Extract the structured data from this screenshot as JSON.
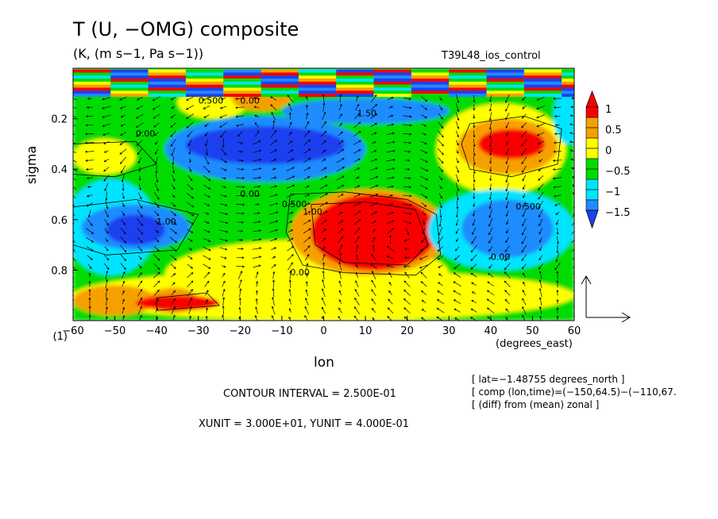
{
  "chart_data": {
    "type": "heatmap",
    "title": "T (U, −OMG) composite",
    "subtitle": "(K, (m s−1, Pa s−1))",
    "run_label": "T39L48_ios_control",
    "xlabel": "lon",
    "xunits": "(degrees_east)",
    "ylabel": "sigma",
    "x_ticks": [
      "−60",
      "−50",
      "−40",
      "−30",
      "−20",
      "−10",
      "0",
      "10",
      "20",
      "30",
      "40",
      "50",
      "60"
    ],
    "y_ticks": [
      "0.2",
      "0.4",
      "0.6",
      "0.8",
      "(1)"
    ],
    "xlim": [
      -60,
      60
    ],
    "ylim": [
      1.0,
      0.0
    ],
    "colorbar_labels": [
      "1",
      "0.5",
      "0",
      "−0.5",
      "−1",
      "−1.5"
    ],
    "colorbar_levels": [
      1.0,
      0.75,
      0.5,
      0.25,
      0.0,
      -0.25,
      -0.5,
      -0.75,
      -1.0,
      -1.25,
      -1.5
    ],
    "colorbar_colors": [
      "#f90000",
      "#f6a000",
      "#ffff00",
      "#00dc00",
      "#00e4ff",
      "#1e8cff",
      "#1e40f0"
    ],
    "contour_labels": [
      "0.500",
      "0.00",
      "0.00",
      "0.500",
      "1.00",
      "1.50",
      "1.00",
      "0.00",
      "0.00",
      "0.500",
      "0.00"
    ],
    "contour_interval_text": "CONTOUR INTERVAL = 2.500E-01",
    "unit_text": "XUNIT = 3.000E+01, YUNIT = 4.000E-01",
    "notes": [
      "[ lat=−1.48755 degrees_north ]",
      "[ comp (lon,time)=(−150,64.5)−(−110,67.",
      "[ (diff) from (mean) zonal ]"
    ],
    "grid": false,
    "legend_position": "right"
  }
}
